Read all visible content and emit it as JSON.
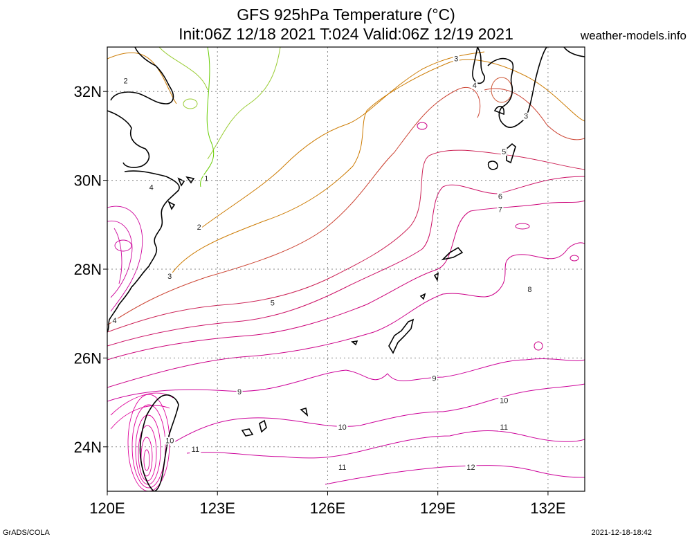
{
  "header": {
    "title_line1": "GFS 925hPa Temperature (°C)",
    "title_line2": "Init:06Z 12/18 2021 T:024 Valid:06Z 12/19 2021",
    "site": "weather-models.info"
  },
  "footer": {
    "left": "GrADS/COLA",
    "right": "2021-12-18-18:42"
  },
  "map": {
    "lon_range": [
      120,
      133
    ],
    "lat_range": [
      23,
      33
    ],
    "lon_ticks": [
      {
        "value": 120,
        "label": "120E"
      },
      {
        "value": 123,
        "label": "123E"
      },
      {
        "value": 126,
        "label": "126E"
      },
      {
        "value": 129,
        "label": "129E"
      },
      {
        "value": 132,
        "label": "132E"
      }
    ],
    "lat_ticks": [
      {
        "value": 24,
        "label": "24N"
      },
      {
        "value": 26,
        "label": "26N"
      },
      {
        "value": 28,
        "label": "28N"
      },
      {
        "value": 30,
        "label": "30N"
      },
      {
        "value": 32,
        "label": "32N"
      }
    ],
    "grid": true,
    "contour_labels": [
      {
        "text": "1",
        "lon": 122.7,
        "lat": 30.0
      },
      {
        "text": "2",
        "lon": 120.5,
        "lat": 32.2
      },
      {
        "text": "2",
        "lon": 122.5,
        "lat": 28.9
      },
      {
        "text": "3",
        "lon": 121.7,
        "lat": 27.8
      },
      {
        "text": "3",
        "lon": 129.5,
        "lat": 32.7
      },
      {
        "text": "3",
        "lon": 131.4,
        "lat": 31.4
      },
      {
        "text": "4",
        "lon": 121.2,
        "lat": 29.8
      },
      {
        "text": "4",
        "lon": 120.2,
        "lat": 26.8
      },
      {
        "text": "4",
        "lon": 130.0,
        "lat": 32.1
      },
      {
        "text": "5",
        "lon": 124.5,
        "lat": 27.2
      },
      {
        "text": "5",
        "lon": 130.8,
        "lat": 30.6
      },
      {
        "text": "6",
        "lon": 130.7,
        "lat": 29.6
      },
      {
        "text": "7",
        "lon": 130.7,
        "lat": 29.3
      },
      {
        "text": "8",
        "lon": 131.5,
        "lat": 27.5
      },
      {
        "text": "9",
        "lon": 123.6,
        "lat": 25.2
      },
      {
        "text": "9",
        "lon": 128.9,
        "lat": 25.5
      },
      {
        "text": "10",
        "lon": 121.7,
        "lat": 24.1
      },
      {
        "text": "10",
        "lon": 126.4,
        "lat": 24.4
      },
      {
        "text": "10",
        "lon": 130.8,
        "lat": 25.0
      },
      {
        "text": "11",
        "lon": 122.4,
        "lat": 23.9
      },
      {
        "text": "11",
        "lon": 126.4,
        "lat": 23.5
      },
      {
        "text": "11",
        "lon": 130.8,
        "lat": 24.4
      },
      {
        "text": "12",
        "lon": 129.9,
        "lat": 23.5
      }
    ]
  },
  "colors": {
    "cold": "#66cc00",
    "cool": "#cc7a00",
    "mid": "#cc3355",
    "warm": "#cc0099",
    "coast": "#000000",
    "grid": "#888888"
  }
}
